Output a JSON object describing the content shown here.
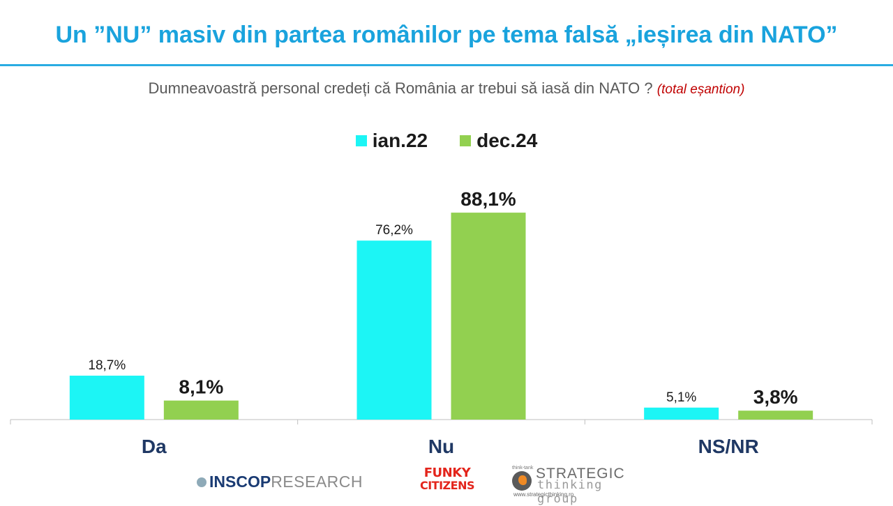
{
  "title": "Un ”NU” masiv din partea românilor pe tema falsă „ieșirea din NATO”",
  "subtitle": {
    "question": "Dumneavoastră personal credeți că România ar trebui să iasă din NATO ?",
    "note": "(total eșantion)"
  },
  "colors": {
    "title": "#1aa3dd",
    "rule": "#29abe2",
    "note": "#c00000"
  },
  "chart_data": {
    "type": "bar",
    "categories": [
      "Da",
      "Nu",
      "NS/NR"
    ],
    "series": [
      {
        "name": "ian.22",
        "color": "#1cf5f5",
        "values": [
          18.7,
          76.2,
          5.1
        ],
        "labels": [
          "18,7%",
          "76,2%",
          "5,1%"
        ],
        "label_style": "normal"
      },
      {
        "name": "dec.24",
        "color": "#92d050",
        "values": [
          8.1,
          88.1,
          3.8
        ],
        "labels": [
          "8,1%",
          "88,1%",
          "3,8%"
        ],
        "label_style": "bold"
      }
    ],
    "ylim": [
      0,
      100
    ],
    "legend_position": "top-center",
    "grid": false
  },
  "footer": {
    "inscop_bold": "INSCOP",
    "inscop_light": "RESEARCH",
    "funky_line1": "FUNKY",
    "funky_line2": "CITIZENS",
    "stg_tiny": "think-tank",
    "stg_name1": "STRATEGIC",
    "stg_name2": "thinking group",
    "stg_url": "www.strategicthinking.ro"
  }
}
